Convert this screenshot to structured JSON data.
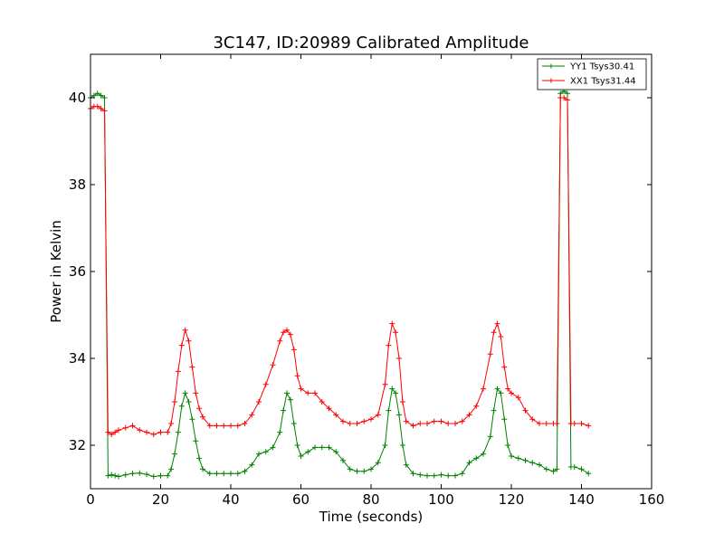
{
  "chart_data": {
    "type": "line",
    "title": "3C147, ID:20989 Calibrated Amplitude",
    "xlabel": "Time (seconds)",
    "ylabel": "Power in Kelvin",
    "xlim": [
      0,
      160
    ],
    "ylim": [
      31,
      41
    ],
    "xticks": [
      0,
      20,
      40,
      60,
      80,
      100,
      120,
      140,
      160
    ],
    "yticks": [
      32,
      34,
      36,
      38,
      40
    ],
    "grid": false,
    "legend_position": "top-right",
    "series": [
      {
        "name": "YY1 Tsys30.41",
        "color": "#008000",
        "marker": "+",
        "x": [
          0,
          1,
          2,
          3,
          4,
          5,
          6,
          7,
          8,
          10,
          12,
          14,
          16,
          18,
          20,
          22,
          23,
          24,
          25,
          26,
          27,
          28,
          29,
          30,
          31,
          32,
          34,
          36,
          38,
          40,
          42,
          44,
          46,
          48,
          50,
          52,
          54,
          55,
          56,
          57,
          58,
          59,
          60,
          62,
          64,
          66,
          68,
          70,
          72,
          74,
          76,
          78,
          80,
          82,
          84,
          85,
          86,
          87,
          88,
          89,
          90,
          92,
          94,
          96,
          98,
          100,
          102,
          104,
          106,
          108,
          110,
          112,
          114,
          115,
          116,
          117,
          118,
          119,
          120,
          122,
          124,
          126,
          128,
          130,
          132,
          133,
          134,
          135,
          136,
          137,
          138,
          140,
          142
        ],
        "y": [
          40.0,
          40.05,
          40.1,
          40.05,
          40.0,
          31.3,
          31.32,
          31.3,
          31.28,
          31.32,
          31.35,
          31.36,
          31.33,
          31.28,
          31.3,
          31.3,
          31.45,
          31.8,
          32.3,
          32.9,
          33.2,
          33.0,
          32.6,
          32.1,
          31.7,
          31.45,
          31.35,
          31.35,
          31.35,
          31.35,
          31.35,
          31.4,
          31.55,
          31.8,
          31.85,
          31.95,
          32.3,
          32.8,
          33.2,
          33.05,
          32.5,
          32.0,
          31.75,
          31.85,
          31.95,
          31.95,
          31.95,
          31.85,
          31.65,
          31.45,
          31.4,
          31.4,
          31.45,
          31.6,
          32.0,
          32.8,
          33.3,
          33.2,
          32.7,
          32.0,
          31.55,
          31.35,
          31.32,
          31.3,
          31.3,
          31.32,
          31.3,
          31.3,
          31.35,
          31.6,
          31.7,
          31.8,
          32.2,
          32.8,
          33.3,
          33.2,
          32.6,
          32.0,
          31.75,
          31.7,
          31.65,
          31.6,
          31.55,
          31.45,
          31.4,
          31.45,
          40.1,
          40.15,
          40.1,
          31.5,
          31.5,
          31.45,
          31.35
        ]
      },
      {
        "name": "XX1 Tsys31.44",
        "color": "#ff0000",
        "marker": "+",
        "x": [
          0,
          1,
          2,
          3,
          4,
          5,
          6,
          7,
          8,
          10,
          12,
          14,
          16,
          18,
          20,
          22,
          23,
          24,
          25,
          26,
          27,
          28,
          29,
          30,
          31,
          32,
          34,
          36,
          38,
          40,
          42,
          44,
          46,
          48,
          50,
          52,
          54,
          55,
          56,
          57,
          58,
          59,
          60,
          62,
          64,
          66,
          68,
          70,
          72,
          74,
          76,
          78,
          80,
          82,
          84,
          85,
          86,
          87,
          88,
          89,
          90,
          92,
          94,
          96,
          98,
          100,
          102,
          104,
          106,
          108,
          110,
          112,
          114,
          115,
          116,
          117,
          118,
          119,
          120,
          122,
          124,
          126,
          128,
          130,
          132,
          133,
          134,
          135,
          136,
          137,
          138,
          140,
          142
        ],
        "y": [
          39.75,
          39.8,
          39.8,
          39.75,
          39.7,
          32.3,
          32.25,
          32.3,
          32.35,
          32.4,
          32.45,
          32.35,
          32.3,
          32.25,
          32.3,
          32.3,
          32.5,
          33.0,
          33.7,
          34.3,
          34.65,
          34.4,
          33.8,
          33.2,
          32.85,
          32.65,
          32.45,
          32.45,
          32.45,
          32.45,
          32.45,
          32.5,
          32.7,
          33.0,
          33.4,
          33.85,
          34.4,
          34.6,
          34.65,
          34.55,
          34.2,
          33.6,
          33.3,
          33.2,
          33.2,
          33.0,
          32.85,
          32.7,
          32.55,
          32.5,
          32.5,
          32.55,
          32.6,
          32.7,
          33.4,
          34.3,
          34.8,
          34.6,
          34.0,
          33.0,
          32.55,
          32.45,
          32.5,
          32.5,
          32.55,
          32.55,
          32.5,
          32.5,
          32.55,
          32.7,
          32.9,
          33.3,
          34.1,
          34.6,
          34.8,
          34.5,
          33.8,
          33.3,
          33.2,
          33.1,
          32.8,
          32.6,
          32.5,
          32.5,
          32.5,
          32.5,
          40.0,
          40.0,
          39.95,
          32.5,
          32.5,
          32.5,
          32.45
        ]
      }
    ]
  }
}
